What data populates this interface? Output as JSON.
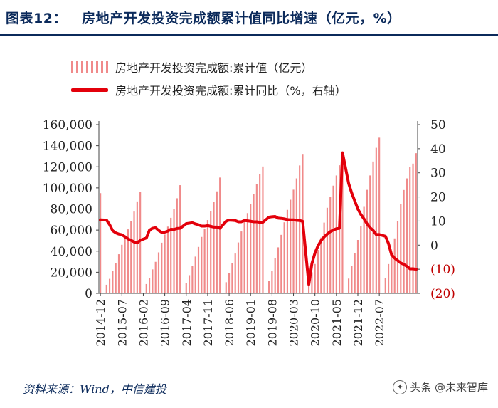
{
  "header": {
    "figure_number": "图表12：",
    "title": "房地产开发投资完成额累计值同比增速（亿元，%）"
  },
  "legend": {
    "bar_label": "房地产开发投资完成额:累计值（亿元）",
    "line_label": "房地产开发投资完成额:累计同比（%，右轴）"
  },
  "source": "资料来源：Wind，中信建投",
  "watermark": "头条 @未来智库",
  "colors": {
    "bar": "#f08a8a",
    "line": "#e3000b",
    "axis_right": "#c00000",
    "axis_left": "#222222"
  },
  "chart_data": {
    "type": "bar+line",
    "start": "2014-12",
    "interval": "monthly",
    "x_tick_labels": [
      "2014-12",
      "2015-07",
      "2016-02",
      "2016-09",
      "2017-04",
      "2017-11",
      "2018-06",
      "2019-01",
      "2019-08",
      "2020-03",
      "2020-10",
      "2021-05",
      "2021-12",
      "2022-07"
    ],
    "y_left": {
      "min": 0,
      "max": 160000,
      "step": 20000,
      "tick_labels": [
        "0",
        "20,000",
        "40,000",
        "60,000",
        "80,000",
        "100,000",
        "120,000",
        "140,000",
        "160,000"
      ]
    },
    "y_right": {
      "min": -20,
      "max": 50,
      "step": 10,
      "tick_labels": [
        "(20)",
        "(10)",
        "0",
        "10",
        "20",
        "30",
        "40",
        "50"
      ]
    },
    "series": [
      {
        "name": "房地产开发投资完成额:累计值（亿元）",
        "type": "bar",
        "axis": "left",
        "values": [
          95036,
          0,
          8166,
          13766,
          21522,
          28549,
          37083,
          46050,
          53580,
          60674,
          68751,
          77556,
          87187,
          95979,
          0,
          8821,
          14473,
          22734,
          29873,
          38833,
          48007,
          55748,
          63272,
          71627,
          80000,
          90170,
          102581,
          0,
          9978,
          17236,
          26243,
          34828,
          44016,
          53505,
          61328,
          69494,
          77948,
          86768,
          96713,
          109799,
          0,
          10575,
          18988,
          28934,
          37755,
          48211,
          58690,
          67756,
          76104,
          84761,
          94289,
          103852,
          112864,
          120264,
          0,
          12090,
          21366,
          33145,
          43601,
          55478,
          67380,
          79150,
          88779,
          98289,
          109012,
          121265,
          132194,
          0,
          10115,
          19950,
          27840,
          41103,
          52895,
          67095,
          81156,
          91422,
          102109,
          111766,
          121433,
          126131,
          0,
          13986,
          25813,
          38040,
          50628,
          64057,
          82034,
          98147,
          111800,
          125000,
          138000,
          147602,
          0,
          14499,
          27765,
          39154,
          52134,
          68314,
          85000,
          98000,
          109000,
          120000,
          123000,
          132895
        ]
      },
      {
        "name": "房地产开发投资完成额:累计同比（%，右轴）",
        "type": "line",
        "axis": "right",
        "values": [
          10.5,
          null,
          10.4,
          8.5,
          6.0,
          5.1,
          4.6,
          4.3,
          3.5,
          2.6,
          2.0,
          1.3,
          1.0,
          2.0,
          null,
          3.0,
          6.2,
          7.0,
          7.2,
          6.1,
          5.3,
          5.4,
          5.8,
          6.6,
          6.5,
          6.9,
          7.0,
          null,
          8.9,
          9.1,
          9.3,
          8.8,
          8.5,
          7.9,
          7.9,
          8.1,
          7.8,
          7.5,
          7.5,
          7.0,
          null,
          9.9,
          10.4,
          10.3,
          10.2,
          9.7,
          9.7,
          10.2,
          10.1,
          9.9,
          9.7,
          9.7,
          9.5,
          9.5,
          null,
          11.6,
          11.8,
          11.9,
          11.2,
          11.1,
          10.9,
          10.6,
          10.5,
          10.5,
          10.3,
          10.2,
          9.9,
          null,
          -16.3,
          -7.7,
          -3.3,
          -0.3,
          1.9,
          3.4,
          4.6,
          5.6,
          6.3,
          6.8,
          7.0,
          38.3,
          null,
          25.6,
          21.6,
          18.3,
          15.0,
          12.7,
          10.9,
          8.9,
          7.2,
          6.1,
          4.4,
          4.4,
          null,
          3.7,
          0.7,
          -4.0,
          -5.4,
          -6.4,
          -7.4,
          -8.0,
          -8.8,
          -9.8,
          -9.8,
          -10.0
        ]
      }
    ]
  }
}
